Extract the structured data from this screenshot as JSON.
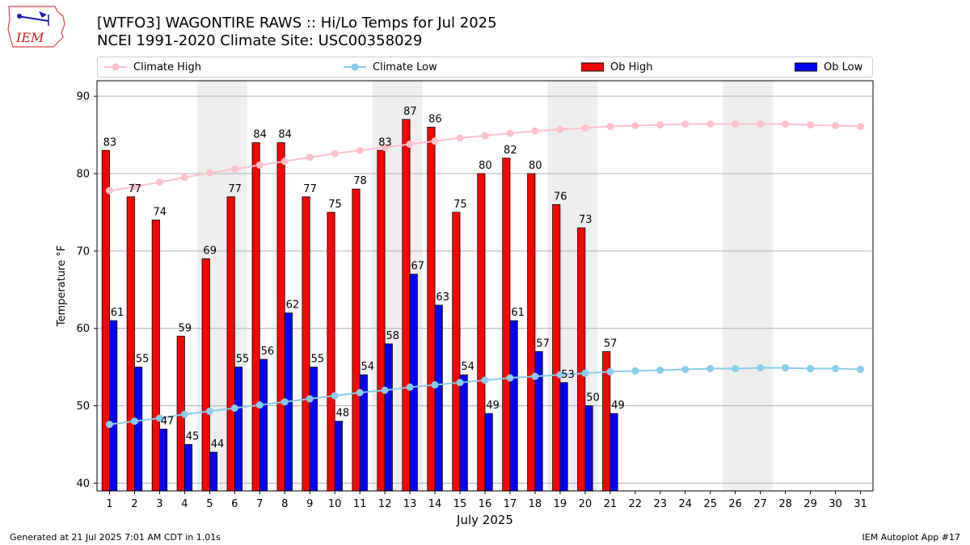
{
  "header": {
    "title_line1": "[WTFO3] WAGONTIRE RAWS :: Hi/Lo Temps for Jul 2025",
    "title_line2": "NCEI 1991-2020 Climate Site: USC00358029",
    "logo_text": "IEM"
  },
  "legend": {
    "climate_high": "Climate High",
    "climate_low": "Climate Low",
    "ob_high": "Ob High",
    "ob_low": "Ob Low"
  },
  "colors": {
    "climate_high": "#ffc0cb",
    "climate_low": "#87ceeb",
    "ob_high": "#ff0000",
    "ob_low": "#0000ff",
    "weekend_band": "#eeeeee",
    "grid": "#b0b0b0"
  },
  "footer": {
    "left": "Generated at 21 Jul 2025 7:01 AM CDT in 1.01s",
    "right": "IEM Autoplot App #17"
  },
  "chart_data": {
    "type": "bar",
    "xlabel": "July 2025",
    "ylabel": "Temperature °F",
    "ylim": [
      39,
      92
    ],
    "yticks": [
      40,
      50,
      60,
      70,
      80,
      90
    ],
    "grid": true,
    "legend_position": "top",
    "days": [
      1,
      2,
      3,
      4,
      5,
      6,
      7,
      8,
      9,
      10,
      11,
      12,
      13,
      14,
      15,
      16,
      17,
      18,
      19,
      20,
      21,
      22,
      23,
      24,
      25,
      26,
      27,
      28,
      29,
      30,
      31
    ],
    "shaded_day_ranges": [
      [
        5,
        6
      ],
      [
        12,
        13
      ],
      [
        19,
        20
      ],
      [
        26,
        27
      ]
    ],
    "series": [
      {
        "name": "Ob High",
        "kind": "bar",
        "values": [
          83,
          77,
          74,
          59,
          69,
          77,
          84,
          84,
          77,
          75,
          78,
          83,
          87,
          86,
          75,
          80,
          82,
          80,
          76,
          73,
          57
        ]
      },
      {
        "name": "Ob Low",
        "kind": "bar",
        "values": [
          61,
          55,
          47,
          45,
          44,
          55,
          56,
          62,
          55,
          48,
          54,
          58,
          67,
          63,
          54,
          49,
          61,
          57,
          53,
          50,
          49
        ]
      },
      {
        "name": "Climate High",
        "kind": "line",
        "values": [
          77.8,
          78.3,
          78.9,
          79.5,
          80.1,
          80.6,
          81.1,
          81.6,
          82.1,
          82.6,
          83.0,
          83.4,
          83.8,
          84.2,
          84.6,
          84.9,
          85.2,
          85.5,
          85.7,
          85.9,
          86.1,
          86.2,
          86.3,
          86.4,
          86.4,
          86.4,
          86.4,
          86.4,
          86.3,
          86.2,
          86.1
        ]
      },
      {
        "name": "Climate Low",
        "kind": "line",
        "values": [
          47.6,
          48.0,
          48.4,
          48.9,
          49.3,
          49.7,
          50.1,
          50.5,
          50.9,
          51.3,
          51.7,
          52.0,
          52.4,
          52.7,
          53.0,
          53.3,
          53.6,
          53.8,
          54.0,
          54.2,
          54.4,
          54.5,
          54.6,
          54.7,
          54.8,
          54.8,
          54.9,
          54.9,
          54.8,
          54.8,
          54.7
        ]
      }
    ]
  }
}
